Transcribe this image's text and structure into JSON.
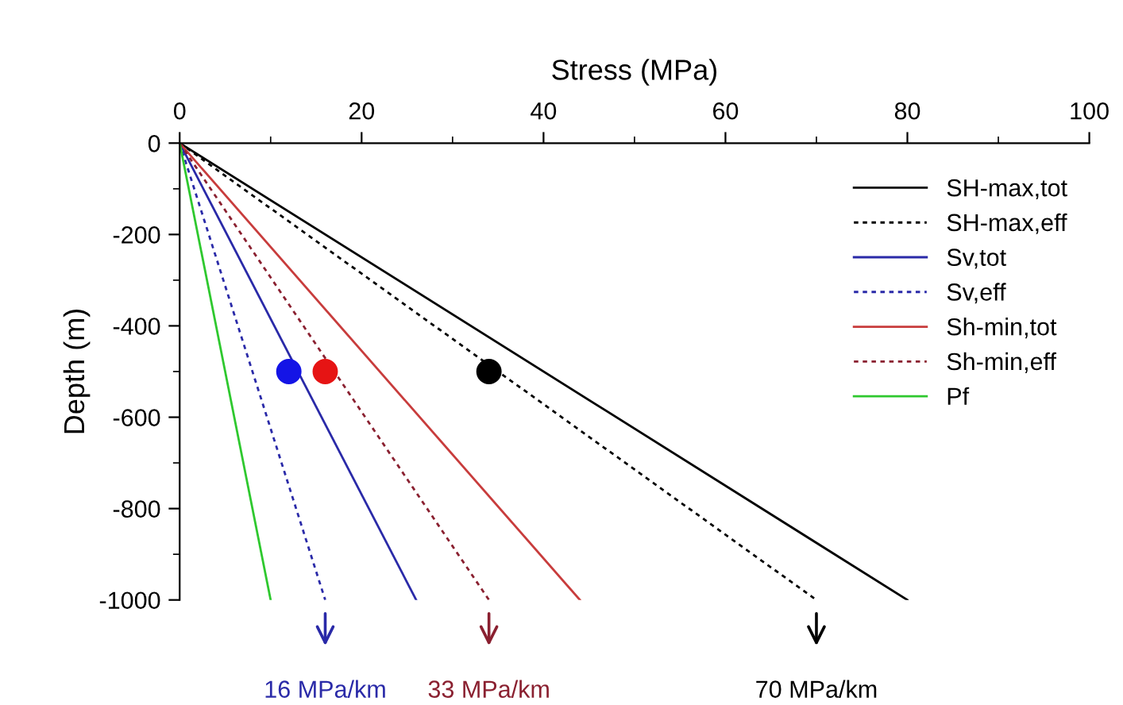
{
  "chart_data": {
    "type": "line",
    "xlabel": "Stress (MPa)",
    "ylabel": "Depth (m)",
    "xlim": [
      0,
      100
    ],
    "xticks": [
      0,
      20,
      40,
      60,
      80,
      100
    ],
    "ylim": [
      -1000,
      0
    ],
    "yticks": [
      -1000,
      -800,
      -600,
      -400,
      -200,
      0
    ],
    "grid": false,
    "legend": "top right",
    "marker": "none",
    "series": [
      {
        "name": "SH-max,tot",
        "color": "#000000",
        "x": [
          0,
          80
        ],
        "values": [
          0,
          -1000
        ],
        "line_style": "solid"
      },
      {
        "name": "SH-max,eff",
        "color": "#000000",
        "x": [
          0,
          70
        ],
        "values": [
          0,
          -1000
        ],
        "line_style": "dotted"
      },
      {
        "name": "Sv,tot",
        "color": "#2a2aa8",
        "x": [
          0,
          26
        ],
        "values": [
          0,
          -1000
        ],
        "line_style": "solid"
      },
      {
        "name": "Sv,eff",
        "color": "#2a2aa8",
        "x": [
          0,
          16
        ],
        "values": [
          0,
          -1000
        ],
        "line_style": "dotted"
      },
      {
        "name": "Sh-min,tot",
        "color": "#c83c3c",
        "x": [
          0,
          44
        ],
        "values": [
          0,
          -1000
        ],
        "line_style": "solid"
      },
      {
        "name": "Sh-min,eff",
        "color": "#8a2030",
        "x": [
          0,
          34
        ],
        "values": [
          0,
          -1000
        ],
        "line_style": "dotted"
      },
      {
        "name": "Pf",
        "color": "#2ec82e",
        "x": [
          0,
          10
        ],
        "values": [
          0,
          -1000
        ],
        "line_style": "solid"
      },
      {
        "type": "scatter",
        "color": "#1414e6",
        "x": [
          12
        ],
        "values": [
          -500
        ],
        "marker": "circle"
      },
      {
        "type": "scatter",
        "color": "#e61414",
        "x": [
          16
        ],
        "values": [
          -500
        ],
        "marker": "circle"
      },
      {
        "type": "scatter",
        "color": "#000000",
        "x": [
          34
        ],
        "values": [
          -500
        ],
        "marker": "circle"
      }
    ],
    "annotations": [
      "16 MPa/km",
      "33 MPa/km",
      "70 MPa/km"
    ]
  }
}
